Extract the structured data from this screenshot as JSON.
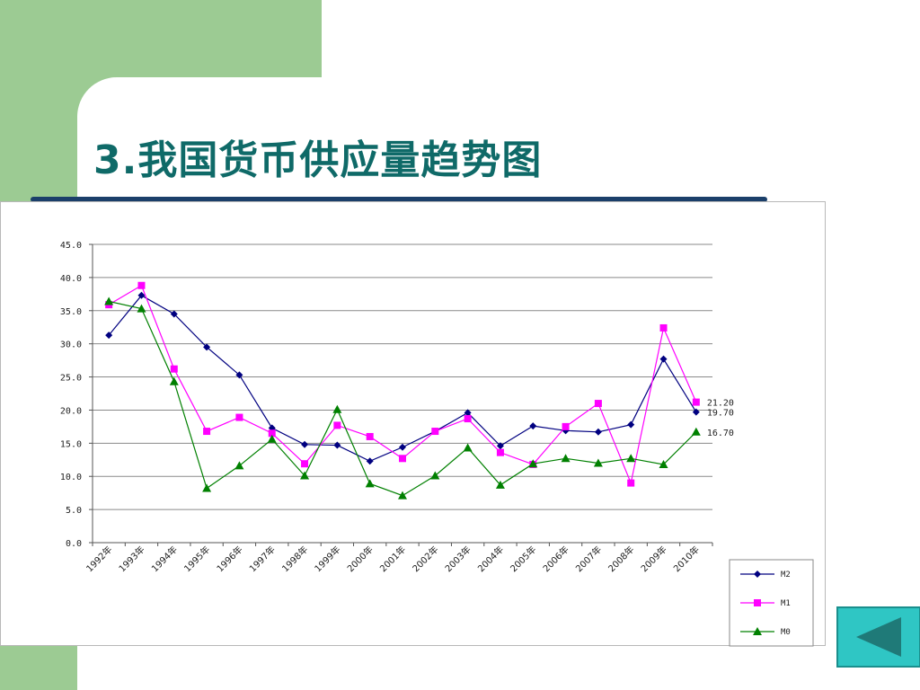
{
  "slide": {
    "title": "3.我国货币供应量趋势图"
  },
  "colors": {
    "green_block": "#9ccb93",
    "title": "#0f6a68",
    "title_rule": "#1b3f6a",
    "nav_button": "#2fc6c4",
    "nav_arrow": "#1f7a78"
  },
  "nav": {
    "icon": "triangle-left-icon"
  },
  "chart_data": {
    "type": "line",
    "categories": [
      "1992年",
      "1993年",
      "1994年",
      "1995年",
      "1996年",
      "1997年",
      "1998年",
      "1999年",
      "2000年",
      "2001年",
      "2002年",
      "2003年",
      "2004年",
      "2005年",
      "2006年",
      "2007年",
      "2008年",
      "2009年",
      "2010年"
    ],
    "ylim": [
      0,
      45
    ],
    "yticks": [
      "0.0",
      "5.0",
      "10.0",
      "15.0",
      "20.0",
      "25.0",
      "30.0",
      "35.0",
      "40.0",
      "45.0"
    ],
    "grid": true,
    "legend_position": "bottom-right",
    "series": [
      {
        "name": "M2",
        "color": "#000080",
        "marker": "diamond",
        "values": [
          31.3,
          37.3,
          34.5,
          29.5,
          25.3,
          17.3,
          14.8,
          14.7,
          12.3,
          14.4,
          16.8,
          19.6,
          14.6,
          17.6,
          16.9,
          16.7,
          17.8,
          27.7,
          19.7
        ],
        "end_label": "19.70"
      },
      {
        "name": "M1",
        "color": "#ff00ff",
        "marker": "square",
        "values": [
          35.9,
          38.8,
          26.2,
          16.8,
          18.9,
          16.5,
          11.9,
          17.7,
          16.0,
          12.7,
          16.8,
          18.7,
          13.6,
          11.8,
          17.5,
          21.0,
          9.0,
          32.4,
          21.2
        ],
        "end_label": "21.20"
      },
      {
        "name": "M0",
        "color": "#008000",
        "marker": "triangle",
        "values": [
          36.4,
          35.3,
          24.3,
          8.2,
          11.6,
          15.6,
          10.1,
          20.1,
          8.9,
          7.1,
          10.1,
          14.3,
          8.7,
          11.9,
          12.7,
          12.0,
          12.7,
          11.8,
          16.7
        ],
        "end_label": "16.70"
      }
    ]
  }
}
